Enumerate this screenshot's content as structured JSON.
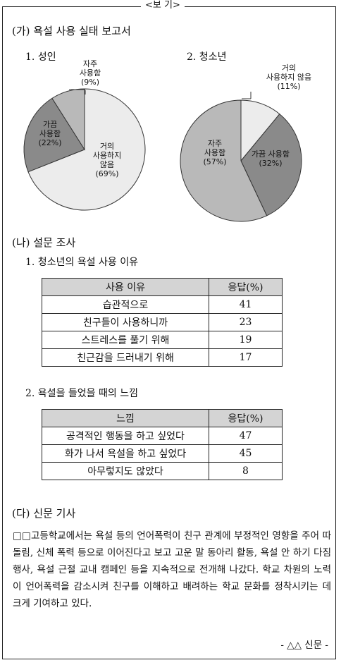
{
  "box_title": "<보 기>",
  "section_a": {
    "title": "(가) 욕설 사용 실태 보고서",
    "adult": {
      "label": "1. 성인",
      "slices": [
        {
          "lines": [
            "거의",
            "사용하지",
            "않음",
            "(69%)"
          ],
          "value": 69,
          "color": "#ececec"
        },
        {
          "lines": [
            "가끔",
            "사용함",
            "(22%)"
          ],
          "value": 22,
          "color": "#8a8a8a"
        },
        {
          "lines": [
            "자주",
            "사용함",
            "(9%)"
          ],
          "value": 9,
          "color": "#b9b9b9"
        }
      ]
    },
    "youth": {
      "label": "2. 청소년",
      "slices": [
        {
          "lines": [
            "거의",
            "사용하지 않음",
            "(11%)"
          ],
          "value": 11,
          "color": "#ececec"
        },
        {
          "lines": [
            "가끔 사용함",
            "(32%)"
          ],
          "value": 32,
          "color": "#8a8a8a"
        },
        {
          "lines": [
            "자주",
            "사용함",
            "(57%)"
          ],
          "value": 57,
          "color": "#b9b9b9"
        }
      ]
    }
  },
  "section_b": {
    "title": "(나) 설문 조사",
    "q1": {
      "label": "1. 청소년의 욕설 사용 이유",
      "headers": [
        "사용 이유",
        "응답(%)"
      ],
      "rows": [
        [
          "습관적으로",
          "41"
        ],
        [
          "친구들이 사용하니까",
          "23"
        ],
        [
          "스트레스를 풀기 위해",
          "19"
        ],
        [
          "친근감을 드러내기 위해",
          "17"
        ]
      ]
    },
    "q2": {
      "label": "2. 욕설을 들었을 때의 느낌",
      "headers": [
        "느낌",
        "응답(%)"
      ],
      "rows": [
        [
          "공격적인 행동을 하고 싶었다",
          "47"
        ],
        [
          "화가 나서 욕설을 하고 싶었다",
          "45"
        ],
        [
          "아무렇지도 않았다",
          "8"
        ]
      ]
    }
  },
  "section_c": {
    "title": "(다) 신문 기사",
    "body": "□□고등학교에서는 욕설 등의 언어폭력이 친구 관계에 부정적인 영향을 주어 따돌림, 신체 폭력 등으로 이어진다고 보고 고운 말 동아리 활동, 욕설 안 하기 다짐 행사, 욕설 근절 교내 캠페인 등을 지속적으로 전개해 나갔다. 학교 차원의 노력이 언어폭력을 감소시켜 친구를 이해하고 배려하는 학교 문화를 정착시키는 데 크게 기여하고 있다.",
    "source": "- △△ 신문 -"
  }
}
